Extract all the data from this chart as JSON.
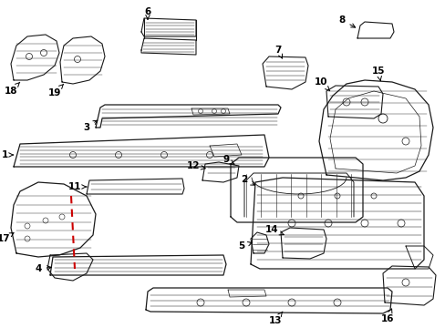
{
  "background_color": "#ffffff",
  "line_color": "#1a1a1a",
  "red_color": "#cc0000",
  "fig_width": 4.89,
  "fig_height": 3.6,
  "dpi": 100
}
